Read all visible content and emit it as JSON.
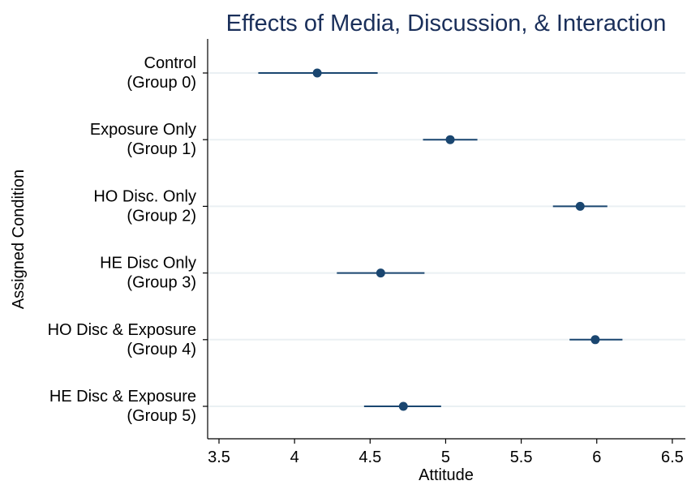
{
  "chart_data": {
    "type": "scatter",
    "subtype": "dot-and-whisker",
    "title": "Effects of Media, Discussion, & Interaction",
    "xlabel": "Attitude",
    "ylabel": "Assigned Condition",
    "xlim": [
      3.45,
      6.55
    ],
    "xticks": [
      "3.5",
      "4",
      "4.5",
      "5",
      "5.5",
      "6",
      "6.5"
    ],
    "grid": "horizontal",
    "categories": [
      {
        "line1": "Control",
        "line2": "(Group 0)"
      },
      {
        "line1": "Exposure Only",
        "line2": "(Group 1)"
      },
      {
        "line1": "HO Disc. Only",
        "line2": "(Group 2)"
      },
      {
        "line1": "HE Disc Only",
        "line2": "(Group 3)"
      },
      {
        "line1": "HO Disc & Exposure",
        "line2": "(Group 4)"
      },
      {
        "line1": "HE Disc & Exposure",
        "line2": "(Group 5)"
      }
    ],
    "points": [
      {
        "estimate": 4.15,
        "lower": 3.76,
        "upper": 4.55
      },
      {
        "estimate": 5.03,
        "lower": 4.85,
        "upper": 5.21
      },
      {
        "estimate": 5.89,
        "lower": 5.71,
        "upper": 6.07
      },
      {
        "estimate": 4.57,
        "lower": 4.28,
        "upper": 4.86
      },
      {
        "estimate": 5.99,
        "lower": 5.82,
        "upper": 6.17
      },
      {
        "estimate": 4.72,
        "lower": 4.46,
        "upper": 4.97
      }
    ],
    "colors": {
      "marker": "#1a4670",
      "title": "#1a2f5a",
      "grid": "#eaf0f3",
      "axis": "#000000"
    }
  }
}
